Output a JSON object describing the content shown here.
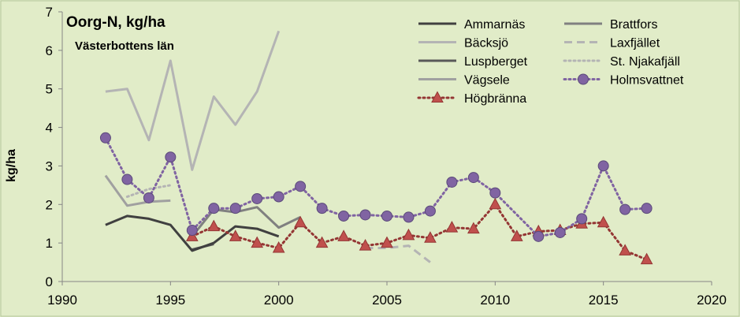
{
  "chart_data": {
    "type": "line",
    "title": "Oorg-N, kg/ha",
    "subtitle": "Västerbottens län",
    "xlabel": "",
    "ylabel": "kg/ha",
    "xlim": [
      1990,
      2020
    ],
    "ylim": [
      0,
      7
    ],
    "xticks": [
      1990,
      1995,
      2000,
      2005,
      2010,
      2015,
      2020
    ],
    "yticks": [
      0,
      1,
      2,
      3,
      4,
      5,
      6,
      7
    ],
    "grid": false,
    "legend_position": "top-right",
    "series": [
      {
        "name": "Ammarnäs",
        "color": "#404040",
        "style": "solid",
        "x": [
          1992,
          1993,
          1994,
          1995,
          1996,
          1997,
          1998,
          1999,
          2000
        ],
        "y": [
          1.47,
          1.7,
          1.63,
          1.47,
          0.8,
          1.0,
          1.43,
          1.37,
          1.17
        ]
      },
      {
        "name": "Brattfors",
        "color": "#808080",
        "style": "solid",
        "x": [
          1996,
          1997,
          1998,
          1999,
          2000,
          2001
        ],
        "y": [
          1.17,
          1.87,
          1.8,
          1.93,
          1.4,
          1.67
        ]
      },
      {
        "name": "Bäcksjö",
        "color": "#b4b4b4",
        "style": "solid",
        "x": [
          1992,
          1993,
          1994,
          1995,
          1996,
          1997,
          1998,
          1999,
          2000
        ],
        "y": [
          4.93,
          5.0,
          3.67,
          5.73,
          2.9,
          4.8,
          4.07,
          4.93,
          6.5
        ]
      },
      {
        "name": "Laxfjället",
        "color": "#b4b4b4",
        "style": "dashed",
        "x": [
          2004,
          2005,
          2006,
          2007
        ],
        "y": [
          0.87,
          0.87,
          0.93,
          0.5
        ]
      },
      {
        "name": "Luspberget",
        "color": "#595959",
        "style": "solid",
        "x": [
          1996,
          1997
        ],
        "y": [
          0.83,
          0.97
        ]
      },
      {
        "name": "St. Njakafjäll",
        "color": "#b4b4b4",
        "style": "dotted",
        "x": [
          1993,
          1994,
          1995
        ],
        "y": [
          2.2,
          2.4,
          2.5
        ]
      },
      {
        "name": "Vägsele",
        "color": "#a0a0a0",
        "style": "solid",
        "x": [
          1992,
          1993,
          1994,
          1995
        ],
        "y": [
          2.75,
          1.97,
          2.07,
          2.1
        ]
      },
      {
        "name": "Holmsvattnet",
        "color": "#8064a2",
        "style": "dotted",
        "marker": "circle",
        "x": [
          1992,
          1993,
          1994,
          1995,
          1996,
          1997,
          1998,
          1999,
          2000,
          2001,
          2002,
          2003,
          2004,
          2005,
          2006,
          2007,
          2008,
          2009,
          2010,
          2012,
          2013,
          2014,
          2015,
          2016,
          2017
        ],
        "y": [
          3.73,
          2.65,
          2.17,
          3.23,
          1.33,
          1.9,
          1.9,
          2.15,
          2.2,
          2.47,
          1.9,
          1.7,
          1.73,
          1.7,
          1.67,
          1.83,
          2.58,
          2.7,
          2.3,
          1.17,
          1.27,
          1.63,
          3.0,
          1.87,
          1.9
        ]
      },
      {
        "name": "Högbränna",
        "color": "#943634",
        "marker_fill": "#c0504d",
        "style": "dotted",
        "marker": "triangle",
        "x": [
          1996,
          1997,
          1998,
          1999,
          2000,
          2001,
          2002,
          2003,
          2004,
          2005,
          2006,
          2007,
          2008,
          2009,
          2010,
          2011,
          2012,
          2013,
          2014,
          2015,
          2016,
          2017
        ],
        "y": [
          1.17,
          1.43,
          1.17,
          1.0,
          0.87,
          1.53,
          1.0,
          1.17,
          0.93,
          1.0,
          1.2,
          1.13,
          1.4,
          1.37,
          2.0,
          1.17,
          1.3,
          1.33,
          1.5,
          1.53,
          0.8,
          0.57
        ]
      }
    ]
  }
}
